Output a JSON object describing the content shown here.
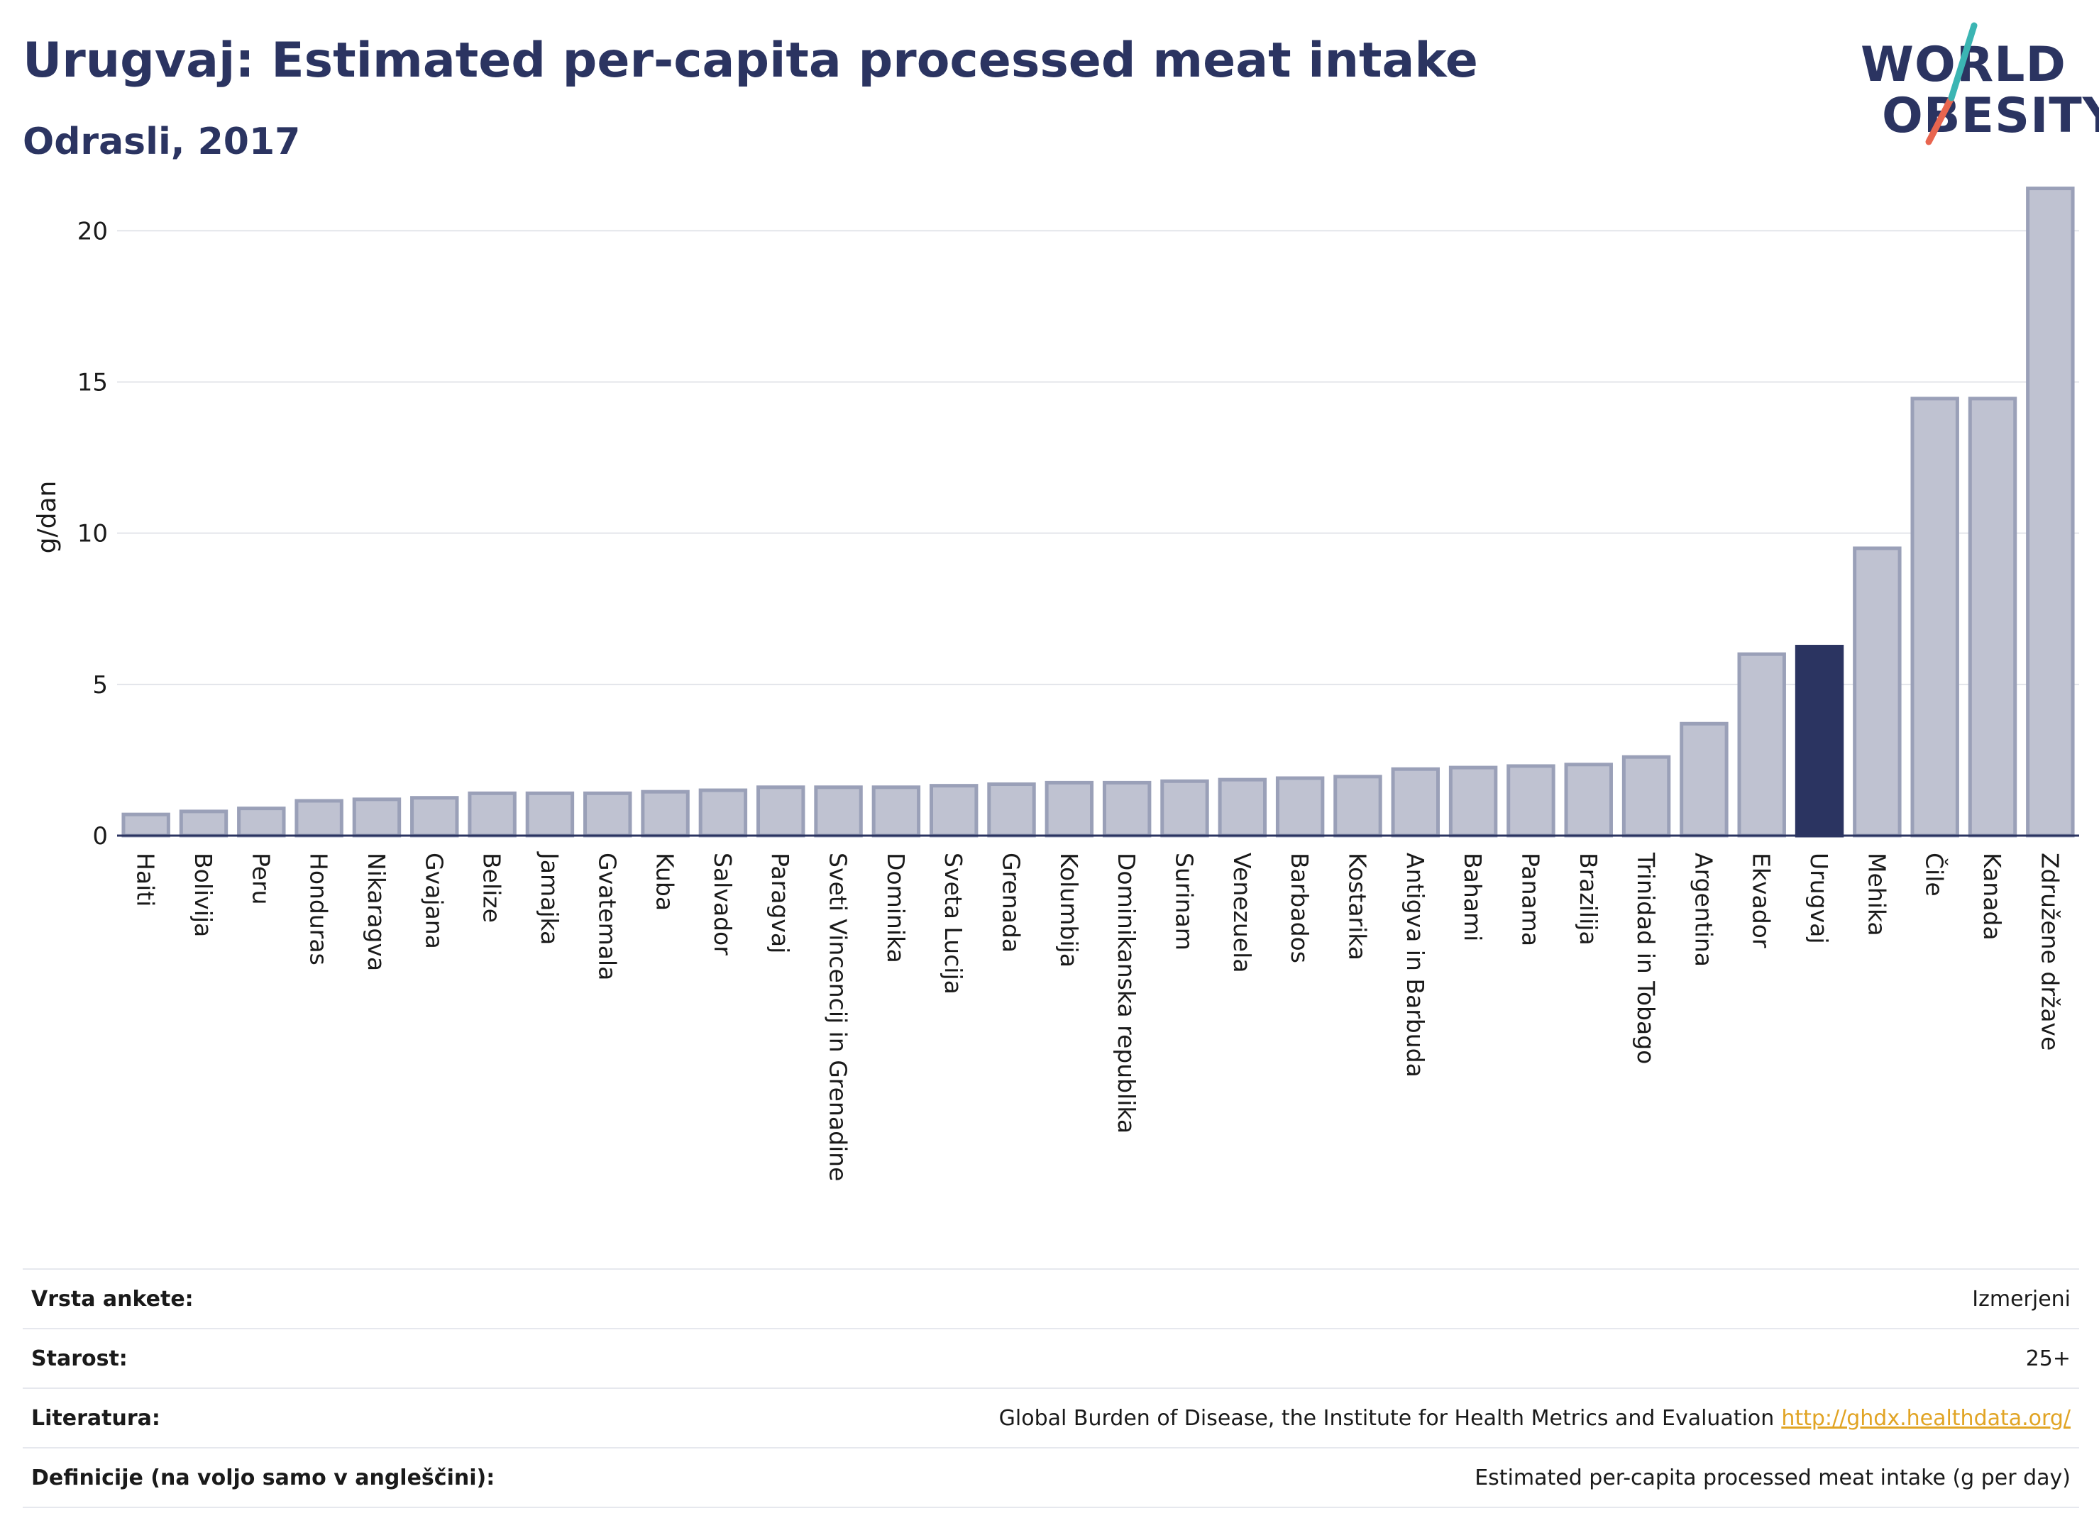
{
  "header": {
    "title": "Urugvaj: Estimated per-capita processed meat intake",
    "subtitle": "Odrasli, 2017"
  },
  "logo": {
    "line1": "WORLD",
    "line2": "OBESITY",
    "accent_colors": [
      "#3bb5b3",
      "#e8654f"
    ]
  },
  "colors": {
    "bar": "#bfc2d1",
    "bar_edge": "#9aa0b8",
    "highlight": "#2b3461",
    "grid": "#e3e5ea",
    "axis": "#2b3461"
  },
  "chart_data": {
    "type": "bar",
    "ylabel": "g/dan",
    "xlabel": "",
    "ylim": [
      0,
      22
    ],
    "yticks": [
      0,
      5,
      10,
      15,
      20
    ],
    "grid": true,
    "highlight": "Urugvaj",
    "categories": [
      "Haiti",
      "Bolivija",
      "Peru",
      "Honduras",
      "Nikaragva",
      "Gvajana",
      "Belize",
      "Jamajka",
      "Gvatemala",
      "Kuba",
      "Salvador",
      "Paragvaj",
      "Sveti Vincencij in Grenadine",
      "Dominika",
      "Sveta Lucija",
      "Grenada",
      "Kolumbija",
      "Dominikanska republika",
      "Surinam",
      "Venezuela",
      "Barbados",
      "Kostarika",
      "Antigva in Barbuda",
      "Bahami",
      "Panama",
      "Brazilija",
      "Trinidad in Tobago",
      "Argentina",
      "Ekvador",
      "Urugvaj",
      "Mehika",
      "Čile",
      "Kanada",
      "Združene države"
    ],
    "values": [
      0.7,
      0.8,
      0.9,
      1.15,
      1.2,
      1.25,
      1.4,
      1.4,
      1.4,
      1.45,
      1.5,
      1.6,
      1.6,
      1.6,
      1.65,
      1.7,
      1.75,
      1.75,
      1.8,
      1.85,
      1.9,
      1.95,
      2.2,
      2.25,
      2.3,
      2.35,
      2.6,
      3.7,
      6.0,
      6.25,
      9.5,
      14.45,
      14.45,
      21.4
    ]
  },
  "meta": [
    {
      "key": "Vrsta ankete:",
      "value": "Izmerjeni"
    },
    {
      "key": "Starost:",
      "value": "25+"
    },
    {
      "key": "Literatura:",
      "value": "Global Burden of Disease, the Institute for Health Metrics and Evaluation",
      "link": "http://ghdx.healthdata.org/"
    },
    {
      "key": "Definicije (na voljo samo v angleščini):",
      "value": "Estimated per-capita processed meat intake (g per day)"
    }
  ]
}
